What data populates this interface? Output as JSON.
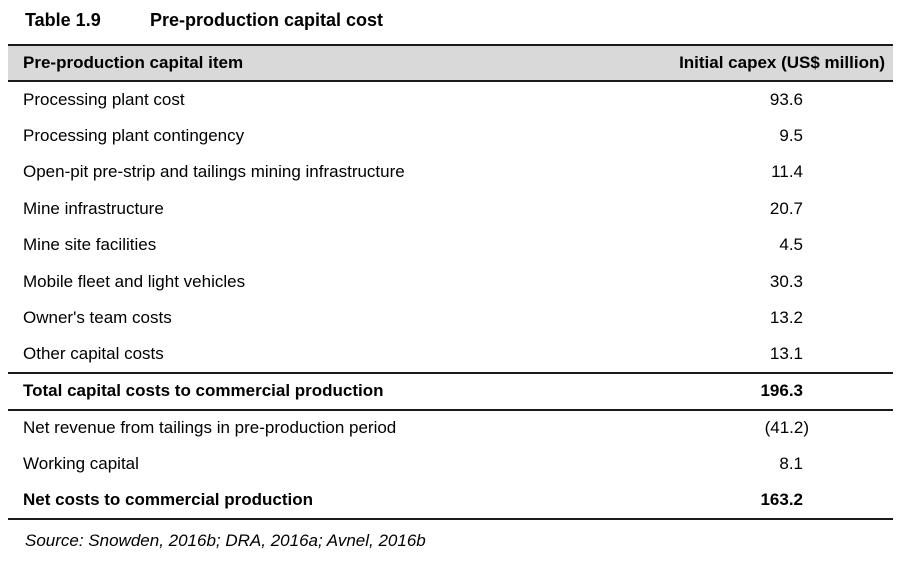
{
  "title": {
    "label": "Table 1.9",
    "caption": "Pre-production capital cost"
  },
  "table": {
    "columns": {
      "item": "Pre-production capital item",
      "value": "Initial capex (US$ million)"
    },
    "rows": [
      {
        "item": "Processing plant cost",
        "value": "93.6"
      },
      {
        "item": "Processing plant contingency",
        "value": "9.5"
      },
      {
        "item": "Open-pit pre-strip and tailings mining infrastructure",
        "value": "11.4"
      },
      {
        "item": "Mine infrastructure",
        "value": "20.7"
      },
      {
        "item": "Mine site facilities",
        "value": "4.5"
      },
      {
        "item": "Mobile fleet and light vehicles",
        "value": "30.3"
      },
      {
        "item": "Owner's team costs",
        "value": "13.2"
      },
      {
        "item": "Other capital costs",
        "value": "13.1"
      },
      {
        "item": "Total capital costs to commercial production",
        "value": "196.3",
        "emphasis": "bold"
      },
      {
        "item": "Net revenue from tailings in pre-production period",
        "value": "(41.2)"
      },
      {
        "item": "Working capital",
        "value": "8.1"
      },
      {
        "item": "Net costs to commercial production",
        "value": "163.2",
        "emphasis": "bold"
      }
    ]
  },
  "source": "Source: Snowden, 2016b; DRA, 2016a; Avnel, 2016b",
  "colors": {
    "header_bg": "#d9d9d9",
    "rule": "#1a1a1a",
    "text": "#000000",
    "background": "#ffffff"
  }
}
